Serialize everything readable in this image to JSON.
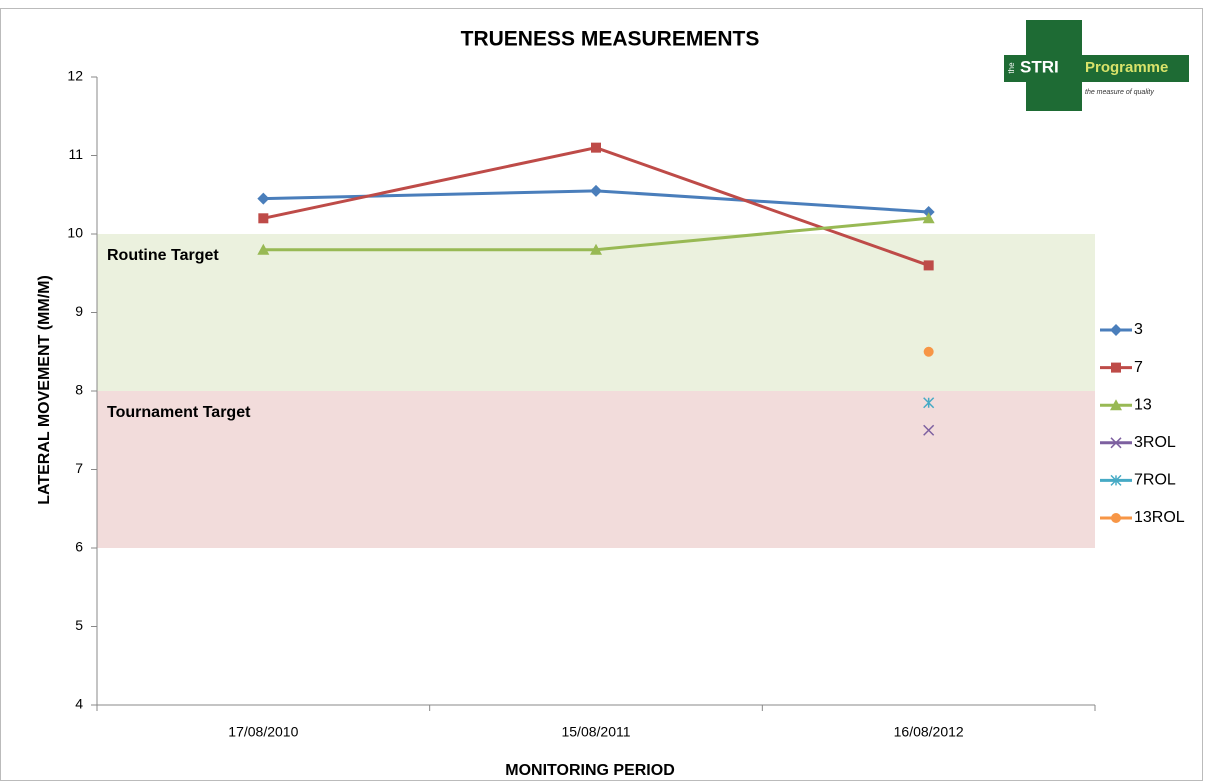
{
  "chart_data": {
    "type": "line",
    "title": "TRUENESS MEASUREMENTS",
    "y_label": "LATERAL MOVEMENT (MM/M)",
    "x_label": "MONITORING PERIOD",
    "categories": [
      "17/08/2010",
      "15/08/2011",
      "16/08/2012"
    ],
    "series": [
      {
        "name": "3",
        "color": "#4a7ebb",
        "marker": "diamond",
        "values": [
          10.45,
          10.55,
          10.28
        ]
      },
      {
        "name": "7",
        "color": "#be4b48",
        "marker": "square",
        "values": [
          10.2,
          11.1,
          9.6
        ]
      },
      {
        "name": "13",
        "color": "#98b954",
        "marker": "triangle",
        "values": [
          9.8,
          9.8,
          10.2
        ]
      },
      {
        "name": "3ROL",
        "color": "#7d60a0",
        "marker": "x",
        "values": [
          null,
          null,
          7.5
        ]
      },
      {
        "name": "7ROL",
        "color": "#46aac5",
        "marker": "star",
        "values": [
          null,
          null,
          7.85
        ]
      },
      {
        "name": "13ROL",
        "color": "#f79646",
        "marker": "circle",
        "values": [
          null,
          null,
          8.5
        ]
      }
    ],
    "bands": [
      {
        "label": "Routine Target",
        "from": 8,
        "to": 10,
        "color": "#ebf1de"
      },
      {
        "label": "Tournament Target",
        "from": 6,
        "to": 8,
        "color": "#f2dcdb"
      }
    ],
    "ylim": [
      4,
      12
    ],
    "yticks": [
      4,
      5,
      6,
      7,
      8,
      9,
      10,
      11,
      12
    ],
    "legend": "right",
    "logo": {
      "prefix": "the",
      "name": "STRI",
      "suffix": "Programme",
      "tagline": "the measure of quality"
    }
  }
}
